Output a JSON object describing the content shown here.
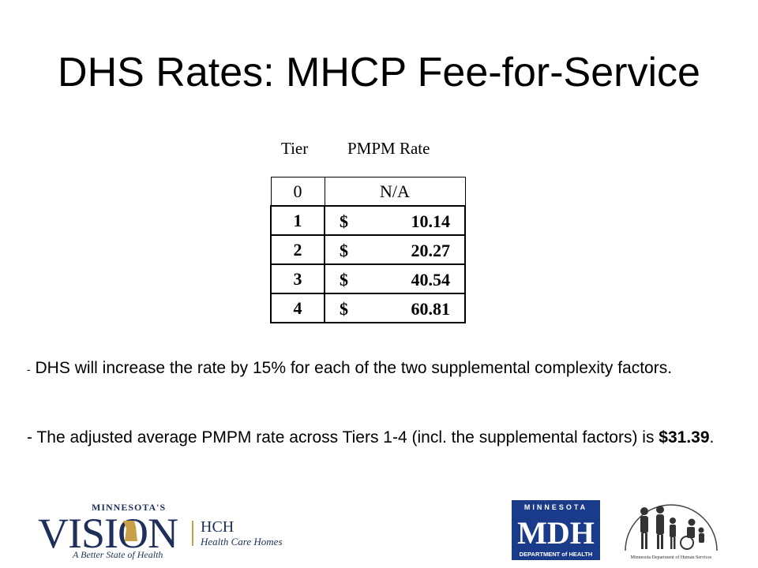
{
  "slide": {
    "title": "DHS Rates: MHCP Fee-for-Service"
  },
  "rate_table": {
    "header_tier": "Tier",
    "header_rate": "PMPM Rate",
    "rows": [
      {
        "tier": "0",
        "currency": "",
        "amount": "N/A"
      },
      {
        "tier": "1",
        "currency": "$",
        "amount": "10.14"
      },
      {
        "tier": "2",
        "currency": "$",
        "amount": "20.27"
      },
      {
        "tier": "3",
        "currency": "$",
        "amount": "40.54"
      },
      {
        "tier": "4",
        "currency": "$",
        "amount": "60.81"
      }
    ]
  },
  "bullets": {
    "b1_dash": "-",
    "b1_text": "DHS will increase the rate by 15% for each of the two supplemental complexity factors.",
    "b2_text": "- The adjusted average PMPM rate across Tiers 1-4 (incl. the supplemental factors) is ",
    "b2_bold": "$31.39",
    "b2_end": "."
  },
  "logos": {
    "vision_top": "MINNESOTA'S",
    "vision_main": "VISION",
    "vision_tagline": "A Better State of Health",
    "hch_abbr": "HCH",
    "hch_full": "Health Care Homes",
    "mdh_top": "MINNESOTA",
    "mdh_main": "MDH",
    "mdh_bottom": "DEPARTMENT of HEALTH",
    "dhs_caption": "Minnesota Department of Human Services"
  },
  "colors": {
    "mdh_blue": "#1a3a8a",
    "vision_navy": "#1e2f5a",
    "vision_gold": "#c8a048"
  }
}
